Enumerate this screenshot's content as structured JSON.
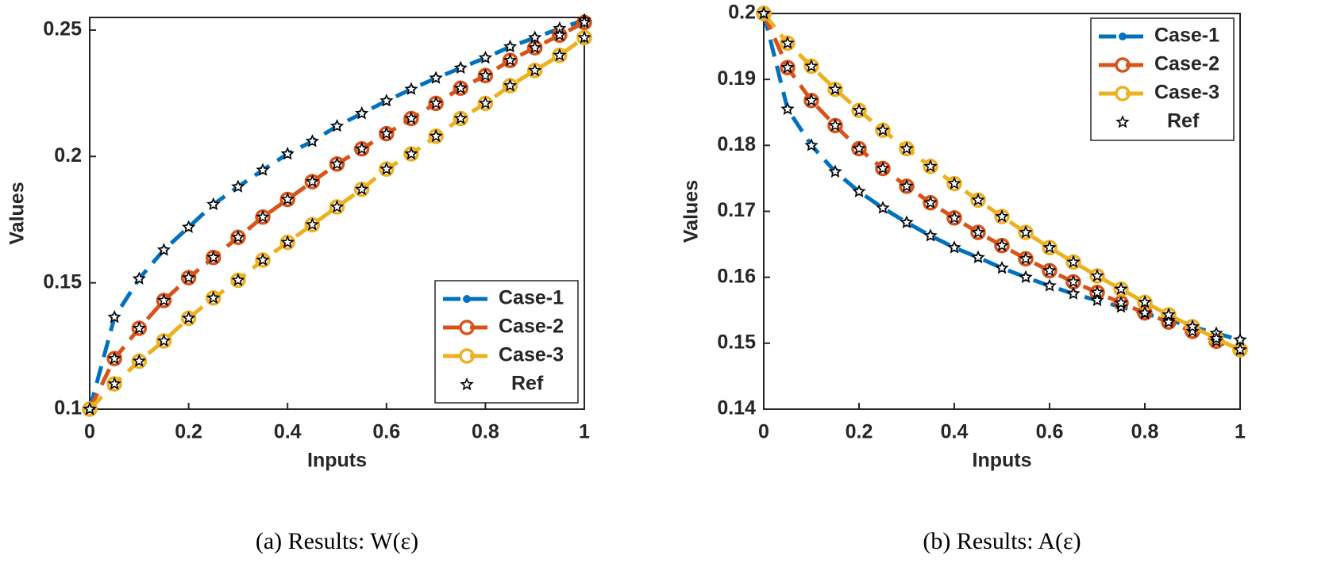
{
  "chart_data": [
    {
      "type": "line",
      "xlabel": "Inputs",
      "ylabel": "Values",
      "caption": "(a) Results: W(ε)",
      "x": [
        0,
        0.05,
        0.1,
        0.15,
        0.2,
        0.25,
        0.3,
        0.35,
        0.4,
        0.45,
        0.5,
        0.55,
        0.6,
        0.65,
        0.7,
        0.75,
        0.8,
        0.85,
        0.9,
        0.95,
        1
      ],
      "xlim": [
        0,
        1
      ],
      "xticks": [
        0,
        0.2,
        0.4,
        0.6,
        0.8,
        1
      ],
      "ylim": [
        0.1,
        0.255
      ],
      "yticks": [
        0.1,
        0.15,
        0.2,
        0.25
      ],
      "legend": "lower right",
      "series": [
        {
          "name": "Case-1",
          "color": "#0072bd",
          "marker": "dot",
          "values": [
            0.1,
            0.1364,
            0.1516,
            0.163,
            0.172,
            0.181,
            0.188,
            0.1946,
            0.201,
            0.206,
            0.212,
            0.217,
            0.222,
            0.2266,
            0.231,
            0.235,
            0.239,
            0.2434,
            0.247,
            0.2506,
            0.254
          ]
        },
        {
          "name": "Case-2",
          "color": "#d95319",
          "marker": "circle",
          "values": [
            0.1,
            0.12,
            0.132,
            0.143,
            0.152,
            0.16,
            0.168,
            0.176,
            0.183,
            0.19,
            0.197,
            0.203,
            0.209,
            0.215,
            0.221,
            0.227,
            0.232,
            0.238,
            0.243,
            0.248,
            0.253
          ]
        },
        {
          "name": "Case-3",
          "color": "#edb120",
          "marker": "circle",
          "values": [
            0.1,
            0.11,
            0.119,
            0.127,
            0.136,
            0.144,
            0.151,
            0.159,
            0.166,
            0.173,
            0.18,
            0.187,
            0.195,
            0.201,
            0.208,
            0.215,
            0.221,
            0.228,
            0.234,
            0.24,
            0.247
          ]
        },
        {
          "name": "Ref",
          "color": "#000000",
          "marker": "star",
          "values": [
            [
              0.1,
              0.1364,
              0.1516,
              0.163,
              0.172,
              0.181,
              0.188,
              0.1946,
              0.201,
              0.206,
              0.212,
              0.217,
              0.222,
              0.2266,
              0.231,
              0.235,
              0.239,
              0.2434,
              0.247,
              0.2506,
              0.254
            ],
            [
              0.1,
              0.12,
              0.132,
              0.143,
              0.152,
              0.16,
              0.168,
              0.176,
              0.183,
              0.19,
              0.197,
              0.203,
              0.209,
              0.215,
              0.221,
              0.227,
              0.232,
              0.238,
              0.243,
              0.248,
              0.253
            ],
            [
              0.1,
              0.11,
              0.119,
              0.127,
              0.136,
              0.144,
              0.151,
              0.159,
              0.166,
              0.173,
              0.18,
              0.187,
              0.195,
              0.201,
              0.208,
              0.215,
              0.221,
              0.228,
              0.234,
              0.24,
              0.247
            ]
          ]
        }
      ]
    },
    {
      "type": "line",
      "xlabel": "Inputs",
      "ylabel": "Values",
      "caption": "(b) Results: A(ε)",
      "x": [
        0,
        0.05,
        0.1,
        0.15,
        0.2,
        0.25,
        0.3,
        0.35,
        0.4,
        0.45,
        0.5,
        0.55,
        0.6,
        0.65,
        0.7,
        0.75,
        0.8,
        0.85,
        0.9,
        0.95,
        1
      ],
      "xlim": [
        0,
        1
      ],
      "xticks": [
        0,
        0.2,
        0.4,
        0.6,
        0.8,
        1
      ],
      "ylim": [
        0.14,
        0.2
      ],
      "yticks": [
        0.14,
        0.15,
        0.16,
        0.17,
        0.18,
        0.19,
        0.2
      ],
      "legend": "upper right",
      "series": [
        {
          "name": "Case-1",
          "color": "#0072bd",
          "marker": "dot",
          "values": [
            0.2,
            0.1855,
            0.18,
            0.176,
            0.173,
            0.1705,
            0.1683,
            0.1663,
            0.1645,
            0.163,
            0.1614,
            0.16,
            0.1587,
            0.1575,
            0.1565,
            0.1555,
            0.1545,
            0.1535,
            0.1525,
            0.1515,
            0.1505
          ]
        },
        {
          "name": "Case-2",
          "color": "#d95319",
          "marker": "circle",
          "values": [
            0.2,
            0.1918,
            0.1868,
            0.183,
            0.1795,
            0.1765,
            0.1738,
            0.1713,
            0.169,
            0.1668,
            0.1648,
            0.1628,
            0.161,
            0.1593,
            0.1577,
            0.1561,
            0.1546,
            0.1532,
            0.1518,
            0.1503,
            0.149
          ]
        },
        {
          "name": "Case-3",
          "color": "#edb120",
          "marker": "circle",
          "values": [
            0.2,
            0.1955,
            0.192,
            0.1885,
            0.1853,
            0.1823,
            0.1795,
            0.1768,
            0.1742,
            0.1717,
            0.1692,
            0.1668,
            0.1645,
            0.1623,
            0.1602,
            0.1582,
            0.1562,
            0.1543,
            0.1525,
            0.1507,
            0.149
          ]
        },
        {
          "name": "Ref",
          "color": "#000000",
          "marker": "star",
          "values": [
            [
              0.2,
              0.1855,
              0.18,
              0.176,
              0.173,
              0.1705,
              0.1683,
              0.1663,
              0.1645,
              0.163,
              0.1614,
              0.16,
              0.1587,
              0.1575,
              0.1565,
              0.1555,
              0.1545,
              0.1535,
              0.1525,
              0.1515,
              0.1505
            ],
            [
              0.2,
              0.1918,
              0.1868,
              0.183,
              0.1795,
              0.1765,
              0.1738,
              0.1713,
              0.169,
              0.1668,
              0.1648,
              0.1628,
              0.161,
              0.1593,
              0.1577,
              0.1561,
              0.1546,
              0.1532,
              0.1518,
              0.1503,
              0.149
            ],
            [
              0.2,
              0.1955,
              0.192,
              0.1885,
              0.1853,
              0.1823,
              0.1795,
              0.1768,
              0.1742,
              0.1717,
              0.1692,
              0.1668,
              0.1645,
              0.1623,
              0.1602,
              0.1582,
              0.1562,
              0.1543,
              0.1525,
              0.1507,
              0.149
            ]
          ]
        }
      ]
    }
  ]
}
